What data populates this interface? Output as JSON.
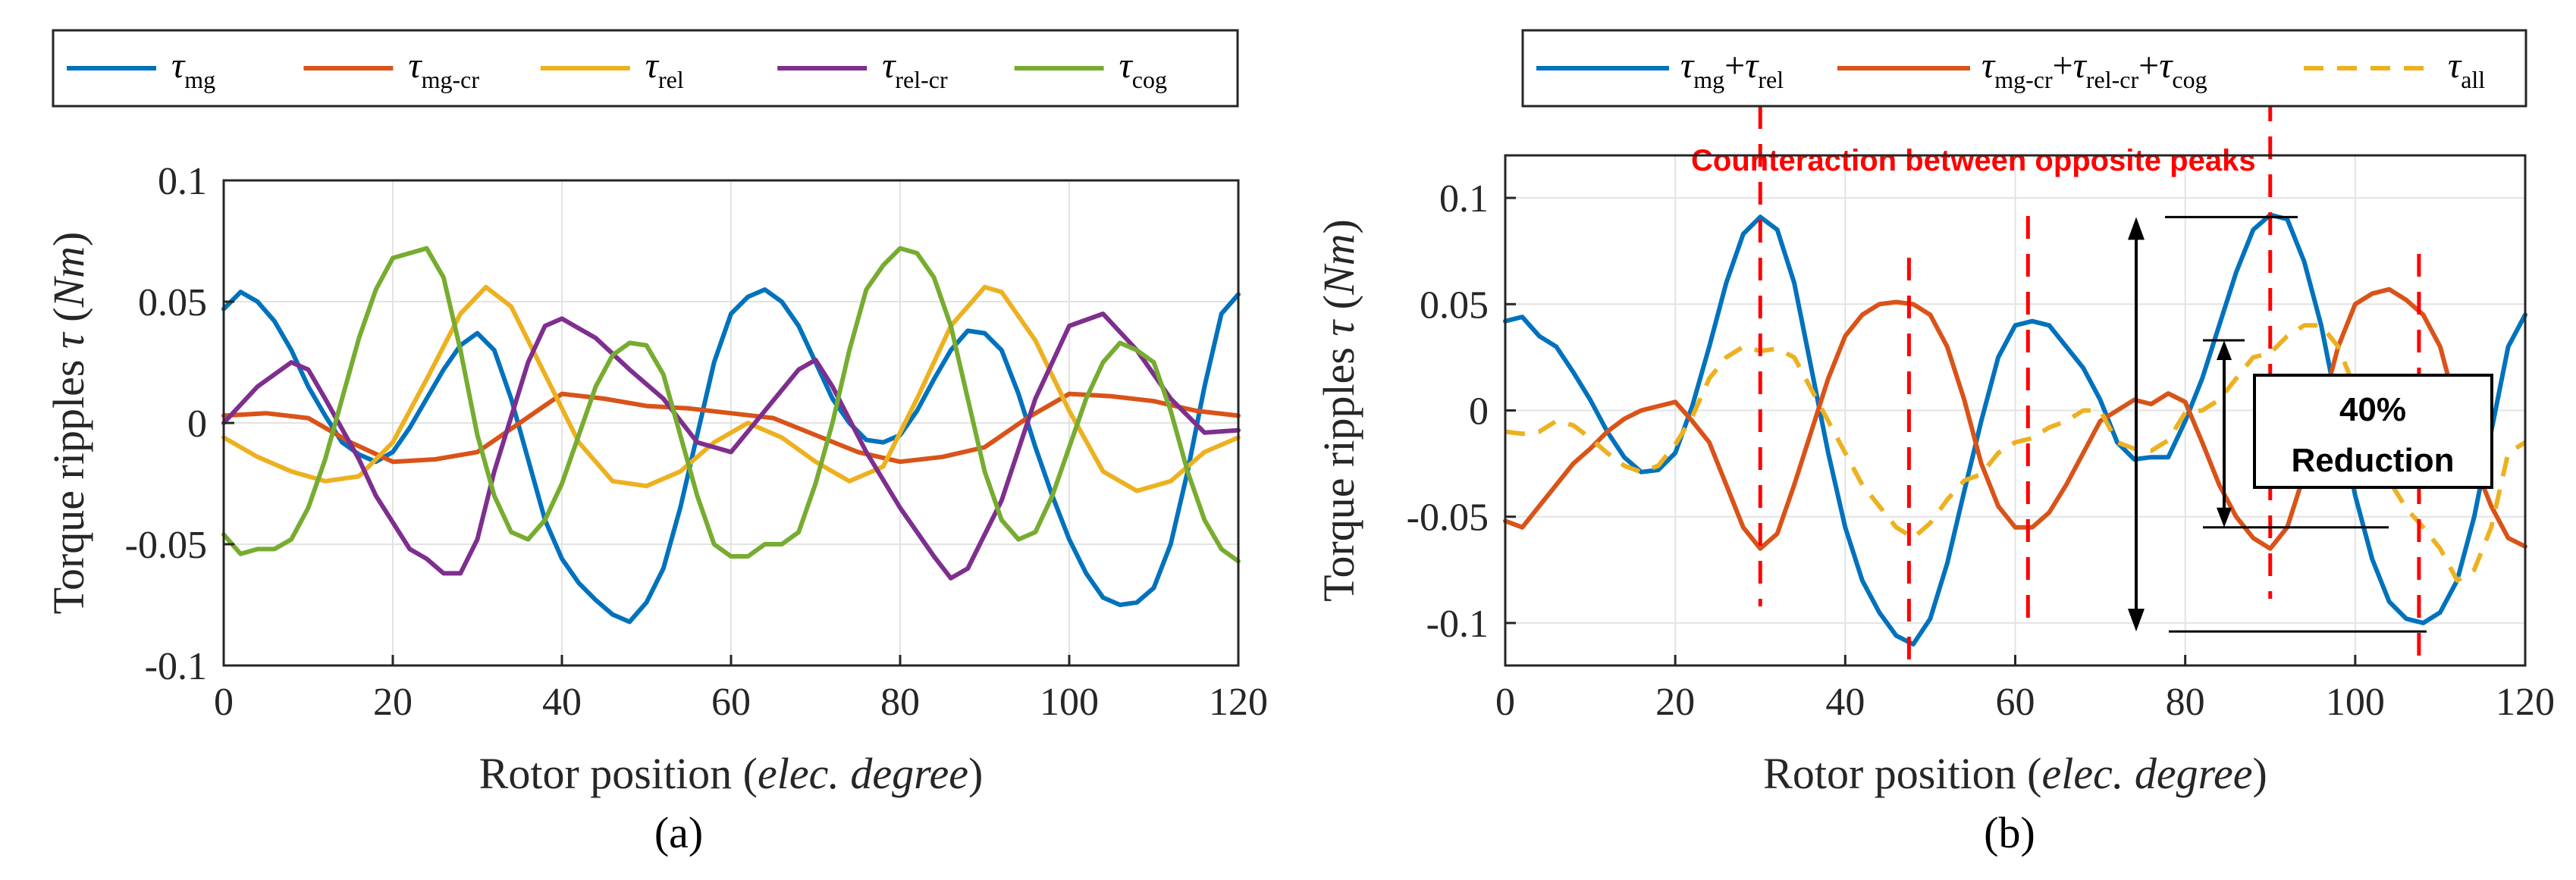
{
  "chart_data": [
    {
      "panel": "(a)",
      "type": "line",
      "xlabel": "Rotor position",
      "xlabel_unit": "elec. degree",
      "ylabel": "Torque ripples",
      "ylabel_symbol": "τ",
      "ylabel_unit": "Nm",
      "xlim": [
        0,
        120
      ],
      "ylim": [
        -0.1,
        0.1
      ],
      "xticks": [
        "0",
        "20",
        "40",
        "60",
        "80",
        "100",
        "120"
      ],
      "yticks": [
        "0.1",
        "0.05",
        "0",
        "-0.05",
        "-0.1"
      ],
      "grid": true,
      "legend_position": "top",
      "series": [
        {
          "name": "τmg",
          "symbol": "τ",
          "sub": "mg",
          "color": "#0072BD",
          "x": [
            0,
            2,
            4,
            6,
            8,
            10,
            12,
            14,
            16,
            18,
            20,
            22,
            24,
            26,
            28,
            30,
            32,
            34,
            36,
            38,
            40,
            42,
            44,
            46,
            48,
            50,
            52,
            54,
            56,
            58,
            60,
            62,
            64,
            66,
            68,
            70,
            72,
            74,
            76,
            78,
            80,
            82,
            84,
            86,
            88,
            90,
            92,
            94,
            96,
            98,
            100,
            102,
            104,
            106,
            108,
            110,
            112,
            114,
            116,
            118,
            120
          ],
          "y": [
            0.047,
            0.054,
            0.05,
            0.042,
            0.03,
            0.015,
            0.003,
            -0.008,
            -0.013,
            -0.016,
            -0.012,
            -0.002,
            0.01,
            0.022,
            0.032,
            0.037,
            0.03,
            0.01,
            -0.015,
            -0.04,
            -0.056,
            -0.066,
            -0.073,
            -0.079,
            -0.082,
            -0.074,
            -0.06,
            -0.035,
            -0.005,
            0.025,
            0.045,
            0.052,
            0.055,
            0.05,
            0.04,
            0.025,
            0.01,
            0.0,
            -0.007,
            -0.008,
            -0.005,
            0.005,
            0.018,
            0.03,
            0.038,
            0.037,
            0.03,
            0.012,
            -0.01,
            -0.03,
            -0.048,
            -0.062,
            -0.072,
            -0.075,
            -0.074,
            -0.068,
            -0.05,
            -0.02,
            0.015,
            0.045,
            0.053
          ]
        },
        {
          "name": "τmg-cr",
          "symbol": "τ",
          "sub": "mg-cr",
          "color": "#D95319",
          "x": [
            0,
            5,
            10,
            15,
            20,
            25,
            30,
            35,
            40,
            45,
            50,
            55,
            60,
            65,
            70,
            75,
            80,
            85,
            90,
            95,
            100,
            105,
            110,
            115,
            120
          ],
          "y": [
            0.003,
            0.004,
            0.002,
            -0.008,
            -0.016,
            -0.015,
            -0.012,
            0.0,
            0.012,
            0.01,
            0.007,
            0.006,
            0.004,
            0.002,
            -0.005,
            -0.012,
            -0.016,
            -0.014,
            -0.01,
            0.002,
            0.012,
            0.011,
            0.009,
            0.005,
            0.003
          ]
        },
        {
          "name": "τrel",
          "symbol": "τ",
          "sub": "rel",
          "color": "#EDB120",
          "x": [
            0,
            4,
            8,
            12,
            16,
            20,
            24,
            28,
            31,
            34,
            38,
            42,
            46,
            50,
            54,
            58,
            62,
            66,
            70,
            74,
            78,
            82,
            86,
            90,
            92,
            96,
            100,
            104,
            108,
            112,
            116,
            120
          ],
          "y": [
            -0.006,
            -0.014,
            -0.02,
            -0.024,
            -0.022,
            -0.008,
            0.018,
            0.045,
            0.056,
            0.048,
            0.02,
            -0.008,
            -0.024,
            -0.026,
            -0.02,
            -0.008,
            0.0,
            -0.006,
            -0.016,
            -0.024,
            -0.018,
            0.01,
            0.04,
            0.056,
            0.054,
            0.034,
            0.005,
            -0.02,
            -0.028,
            -0.024,
            -0.012,
            -0.006
          ]
        },
        {
          "name": "τrel-cr",
          "symbol": "τ",
          "sub": "rel-cr",
          "color": "#7E2F8E",
          "x": [
            0,
            4,
            8,
            10,
            12,
            16,
            18,
            22,
            24,
            26,
            28,
            30,
            32,
            36,
            38,
            40,
            44,
            48,
            52,
            56,
            60,
            64,
            68,
            70,
            72,
            76,
            80,
            84,
            86,
            88,
            92,
            96,
            100,
            104,
            108,
            112,
            116,
            120
          ],
          "y": [
            0.0,
            0.015,
            0.025,
            0.022,
            0.01,
            -0.015,
            -0.03,
            -0.052,
            -0.056,
            -0.062,
            -0.062,
            -0.048,
            -0.02,
            0.025,
            0.04,
            0.043,
            0.035,
            0.022,
            0.01,
            -0.008,
            -0.012,
            0.005,
            0.022,
            0.026,
            0.015,
            -0.012,
            -0.035,
            -0.055,
            -0.064,
            -0.06,
            -0.032,
            0.01,
            0.04,
            0.045,
            0.03,
            0.01,
            -0.004,
            -0.003
          ]
        },
        {
          "name": "τcog",
          "symbol": "τ",
          "sub": "cog",
          "color": "#77AC30",
          "x": [
            0,
            2,
            4,
            6,
            8,
            10,
            12,
            14,
            16,
            18,
            20,
            22,
            24,
            26,
            28,
            30,
            32,
            34,
            36,
            38,
            40,
            42,
            44,
            46,
            48,
            50,
            52,
            54,
            56,
            58,
            60,
            62,
            64,
            66,
            68,
            70,
            72,
            74,
            76,
            78,
            80,
            82,
            84,
            86,
            88,
            90,
            92,
            94,
            96,
            98,
            100,
            102,
            104,
            106,
            108,
            110,
            112,
            114,
            116,
            118,
            120
          ],
          "y": [
            -0.046,
            -0.054,
            -0.052,
            -0.052,
            -0.048,
            -0.035,
            -0.015,
            0.01,
            0.035,
            0.055,
            0.068,
            0.07,
            0.072,
            0.06,
            0.03,
            -0.005,
            -0.03,
            -0.045,
            -0.048,
            -0.04,
            -0.025,
            -0.005,
            0.015,
            0.028,
            0.033,
            0.032,
            0.02,
            -0.005,
            -0.03,
            -0.05,
            -0.055,
            -0.055,
            -0.05,
            -0.05,
            -0.045,
            -0.025,
            0.0,
            0.03,
            0.055,
            0.065,
            0.072,
            0.07,
            0.06,
            0.04,
            0.01,
            -0.02,
            -0.04,
            -0.048,
            -0.045,
            -0.03,
            -0.01,
            0.01,
            0.025,
            0.033,
            0.03,
            0.025,
            0.005,
            -0.02,
            -0.04,
            -0.052,
            -0.057
          ]
        }
      ]
    },
    {
      "panel": "(b)",
      "type": "line",
      "xlabel": "Rotor position",
      "xlabel_unit": "elec. degree",
      "ylabel": "Torque ripples",
      "ylabel_symbol": "τ",
      "ylabel_unit": "Nm",
      "xlim": [
        0,
        120
      ],
      "ylim": [
        -0.12,
        0.12
      ],
      "xticks": [
        "0",
        "20",
        "40",
        "60",
        "80",
        "100",
        "120"
      ],
      "yticks": [
        "0.1",
        "0.05",
        "0",
        "-0.05",
        "-0.1"
      ],
      "grid": true,
      "legend_position": "top",
      "series": [
        {
          "name": "τmg+τrel",
          "parts": [
            [
              "τ",
              "mg"
            ],
            [
              "+τ",
              "rel"
            ]
          ],
          "color": "#0072BD",
          "dash": false,
          "x": [
            0,
            2,
            4,
            6,
            8,
            10,
            12,
            14,
            16,
            18,
            20,
            22,
            24,
            26,
            28,
            30,
            32,
            34,
            36,
            38,
            40,
            42,
            44,
            46,
            48,
            50,
            52,
            54,
            56,
            58,
            60,
            62,
            64,
            66,
            68,
            70,
            72,
            74,
            76,
            78,
            80,
            82,
            84,
            86,
            88,
            90,
            92,
            94,
            96,
            98,
            100,
            102,
            104,
            106,
            108,
            110,
            112,
            114,
            116,
            118,
            120
          ],
          "y": [
            0.042,
            0.044,
            0.035,
            0.03,
            0.018,
            0.005,
            -0.01,
            -0.022,
            -0.029,
            -0.028,
            -0.02,
            0.002,
            0.03,
            0.06,
            0.083,
            0.091,
            0.085,
            0.06,
            0.02,
            -0.02,
            -0.055,
            -0.08,
            -0.095,
            -0.106,
            -0.11,
            -0.098,
            -0.072,
            -0.038,
            -0.005,
            0.025,
            0.04,
            0.042,
            0.04,
            0.03,
            0.02,
            0.005,
            -0.015,
            -0.023,
            -0.022,
            -0.022,
            -0.005,
            0.015,
            0.04,
            0.065,
            0.085,
            0.092,
            0.09,
            0.07,
            0.04,
            0.0,
            -0.04,
            -0.07,
            -0.09,
            -0.098,
            -0.1,
            -0.095,
            -0.08,
            -0.05,
            -0.01,
            0.03,
            0.045
          ]
        },
        {
          "name": "τmg-cr+τrel-cr+τcog",
          "parts": [
            [
              "τ",
              "mg-cr"
            ],
            [
              "+τ",
              "rel-cr"
            ],
            [
              "+τ",
              "cog"
            ]
          ],
          "color": "#D95319",
          "dash": false,
          "x": [
            0,
            2,
            4,
            6,
            8,
            10,
            12,
            14,
            16,
            18,
            20,
            22,
            24,
            26,
            28,
            30,
            32,
            34,
            36,
            38,
            40,
            42,
            44,
            46,
            48,
            50,
            52,
            54,
            56,
            58,
            60,
            62,
            64,
            66,
            68,
            70,
            72,
            74,
            76,
            78,
            80,
            82,
            84,
            86,
            88,
            90,
            92,
            94,
            96,
            98,
            100,
            102,
            104,
            106,
            108,
            110,
            112,
            114,
            116,
            118,
            120
          ],
          "y": [
            -0.052,
            -0.055,
            -0.045,
            -0.035,
            -0.025,
            -0.018,
            -0.01,
            -0.004,
            0.0,
            0.002,
            0.004,
            -0.005,
            -0.015,
            -0.035,
            -0.055,
            -0.065,
            -0.058,
            -0.035,
            -0.01,
            0.015,
            0.035,
            0.045,
            0.05,
            0.051,
            0.05,
            0.045,
            0.03,
            0.005,
            -0.025,
            -0.045,
            -0.055,
            -0.055,
            -0.048,
            -0.035,
            -0.02,
            -0.005,
            0.0,
            0.005,
            0.003,
            0.008,
            0.004,
            -0.015,
            -0.035,
            -0.05,
            -0.06,
            -0.065,
            -0.055,
            -0.03,
            0.0,
            0.03,
            0.05,
            0.055,
            0.057,
            0.052,
            0.045,
            0.03,
            0.0,
            -0.025,
            -0.045,
            -0.06,
            -0.064
          ]
        },
        {
          "name": "τall",
          "parts": [
            [
              "τ",
              "all"
            ]
          ],
          "color": "#EDB120",
          "dash": true,
          "x": [
            0,
            2,
            4,
            6,
            8,
            10,
            12,
            14,
            16,
            18,
            20,
            22,
            24,
            26,
            28,
            30,
            32,
            34,
            36,
            38,
            40,
            42,
            44,
            46,
            48,
            50,
            52,
            54,
            56,
            58,
            60,
            62,
            64,
            66,
            68,
            70,
            72,
            74,
            76,
            78,
            80,
            82,
            84,
            86,
            88,
            90,
            92,
            94,
            96,
            98,
            100,
            102,
            104,
            106,
            108,
            110,
            112,
            114,
            116,
            118,
            120
          ],
          "y": [
            -0.01,
            -0.011,
            -0.01,
            -0.005,
            -0.007,
            -0.013,
            -0.02,
            -0.026,
            -0.029,
            -0.026,
            -0.016,
            -0.003,
            0.015,
            0.025,
            0.03,
            0.028,
            0.029,
            0.025,
            0.01,
            -0.005,
            -0.02,
            -0.035,
            -0.045,
            -0.055,
            -0.06,
            -0.053,
            -0.042,
            -0.033,
            -0.03,
            -0.02,
            -0.015,
            -0.013,
            -0.008,
            -0.005,
            0.0,
            0.0,
            -0.015,
            -0.018,
            -0.019,
            -0.014,
            -0.001,
            0.0,
            0.005,
            0.015,
            0.025,
            0.027,
            0.035,
            0.04,
            0.04,
            0.03,
            0.01,
            -0.015,
            -0.033,
            -0.046,
            -0.055,
            -0.065,
            -0.08,
            -0.075,
            -0.055,
            -0.02,
            -0.015
          ]
        }
      ],
      "annotations": {
        "title": "Counteraction between opposite peaks",
        "box_line1": "40%",
        "box_line2": "Reduction",
        "vlines_x": [
          30,
          47.5,
          61.5,
          90,
          107.5
        ]
      }
    }
  ],
  "panel_labels": [
    "(a)",
    "(b)"
  ]
}
